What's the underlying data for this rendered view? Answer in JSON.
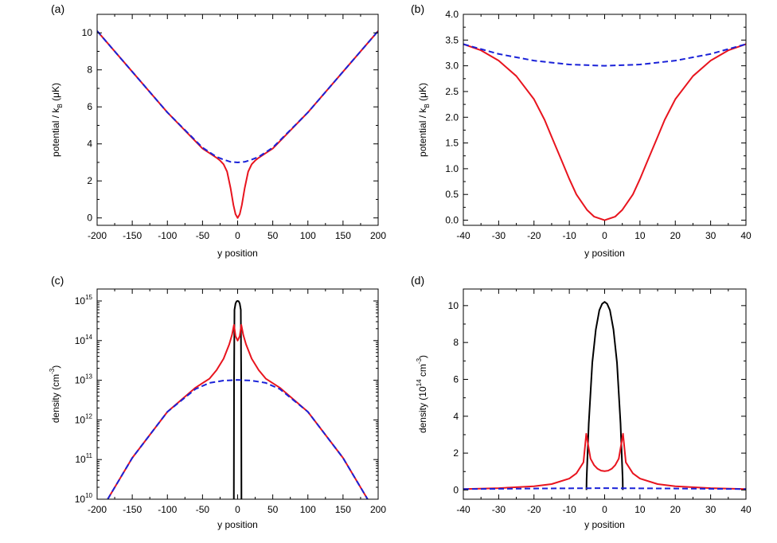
{
  "chart_data": [
    {
      "panel": "(a)",
      "type": "line",
      "xlabel": "y position",
      "ylabel": "potential / k_B (μK)",
      "ylabel_parts": {
        "pre": "potential / k",
        "sub": "B",
        "post": " (μK)"
      },
      "xlim": [
        -200,
        200
      ],
      "ylim": [
        -0.4,
        11
      ],
      "xticks": [
        -200,
        -150,
        -100,
        -50,
        0,
        50,
        100,
        150,
        200
      ],
      "xtick_labels": [
        "-200",
        "-150",
        "-100",
        "-50",
        "0",
        "50",
        "100",
        "150",
        "200"
      ],
      "yticks": [
        0,
        2,
        4,
        6,
        8,
        10
      ],
      "ytick_labels": [
        "0",
        "2",
        "4",
        "6",
        "8",
        "10"
      ],
      "yscale": "linear",
      "series": [
        {
          "color": "#e8141e",
          "style": "solid",
          "x": [
            -200,
            -150,
            -100,
            -50,
            -40,
            -30,
            -25,
            -20,
            -15,
            -10,
            -6,
            -3,
            0,
            3,
            6,
            10,
            15,
            20,
            25,
            30,
            40,
            50,
            100,
            150,
            200
          ],
          "y": [
            10.1,
            7.9,
            5.7,
            3.75,
            3.5,
            3.25,
            3.1,
            2.9,
            2.5,
            1.6,
            0.7,
            0.2,
            0.0,
            0.2,
            0.7,
            1.6,
            2.5,
            2.9,
            3.1,
            3.25,
            3.5,
            3.75,
            5.7,
            7.9,
            10.1
          ]
        },
        {
          "color": "#1a22d8",
          "style": "dashed",
          "x": [
            -200,
            -150,
            -100,
            -50,
            -40,
            -30,
            -20,
            -10,
            0,
            10,
            20,
            30,
            40,
            50,
            100,
            150,
            200
          ],
          "y": [
            10.1,
            7.9,
            5.7,
            3.8,
            3.55,
            3.3,
            3.15,
            3.03,
            3.0,
            3.03,
            3.15,
            3.3,
            3.55,
            3.8,
            5.7,
            7.9,
            10.1
          ]
        }
      ]
    },
    {
      "panel": "(b)",
      "type": "line",
      "xlabel": "y position",
      "ylabel": "potential / k_B (μK)",
      "ylabel_parts": {
        "pre": "potential / k",
        "sub": "B",
        "post": " (μK)"
      },
      "xlim": [
        -40,
        40
      ],
      "ylim": [
        -0.1,
        4.0
      ],
      "xticks": [
        -40,
        -30,
        -20,
        -10,
        0,
        10,
        20,
        30,
        40
      ],
      "xtick_labels": [
        "-40",
        "-30",
        "-20",
        "-10",
        "0",
        "10",
        "20",
        "30",
        "40"
      ],
      "yticks": [
        0.0,
        0.5,
        1.0,
        1.5,
        2.0,
        2.5,
        3.0,
        3.5,
        4.0
      ],
      "ytick_labels": [
        "0.0",
        "0.5",
        "1.0",
        "1.5",
        "2.0",
        "2.5",
        "3.0",
        "3.5",
        "4.0"
      ],
      "yscale": "linear",
      "series": [
        {
          "color": "#e8141e",
          "style": "solid",
          "x": [
            -40,
            -35,
            -30,
            -25,
            -20,
            -17,
            -15,
            -12,
            -10,
            -8,
            -5,
            -3,
            0,
            3,
            5,
            8,
            10,
            12,
            15,
            17,
            20,
            25,
            30,
            35,
            40
          ],
          "y": [
            3.42,
            3.3,
            3.1,
            2.8,
            2.35,
            1.95,
            1.62,
            1.13,
            0.8,
            0.5,
            0.2,
            0.07,
            0.0,
            0.07,
            0.2,
            0.5,
            0.8,
            1.13,
            1.62,
            1.95,
            2.35,
            2.8,
            3.1,
            3.3,
            3.42
          ]
        },
        {
          "color": "#1a22d8",
          "style": "dashed",
          "x": [
            -40,
            -30,
            -20,
            -10,
            0,
            10,
            20,
            30,
            40
          ],
          "y": [
            3.42,
            3.23,
            3.1,
            3.025,
            3.0,
            3.025,
            3.1,
            3.23,
            3.42
          ]
        }
      ]
    },
    {
      "panel": "(c)",
      "type": "line",
      "xlabel": "y position",
      "ylabel": "density (cm^-3)",
      "ylabel_parts": {
        "pre": "density (cm",
        "sup": "-3",
        "post": ")"
      },
      "xlim": [
        -200,
        200
      ],
      "ylim": [
        10000000000.0,
        2000000000000000.0
      ],
      "xticks": [
        -200,
        -150,
        -100,
        -50,
        0,
        50,
        100,
        150,
        200
      ],
      "xtick_labels": [
        "-200",
        "-150",
        "-100",
        "-50",
        "0",
        "50",
        "100",
        "150",
        "200"
      ],
      "yticks": [
        10000000000.0,
        100000000000.0,
        1000000000000.0,
        10000000000000.0,
        100000000000000.0,
        1000000000000000.0
      ],
      "ytick_labels": [
        {
          "base": "10",
          "exp": "10"
        },
        {
          "base": "10",
          "exp": "11"
        },
        {
          "base": "10",
          "exp": "12"
        },
        {
          "base": "10",
          "exp": "13"
        },
        {
          "base": "10",
          "exp": "14"
        },
        {
          "base": "10",
          "exp": "15"
        }
      ],
      "yscale": "log",
      "series": [
        {
          "color": "#000000",
          "style": "solid",
          "x": [
            -5.4,
            -5.1,
            -4.5,
            -3,
            -1.5,
            0,
            1.5,
            3,
            4.5,
            5.1,
            5.4
          ],
          "y": [
            10000000000.0,
            10000000000000.0,
            600000000000000.0,
            860000000000000.0,
            980000000000000.0,
            1000000000000000.0,
            980000000000000.0,
            860000000000000.0,
            600000000000000.0,
            10000000000000.0,
            10000000000.0
          ]
        },
        {
          "color": "#e8141e",
          "style": "solid",
          "x": [
            -185,
            -150,
            -100,
            -60,
            -40,
            -30,
            -20,
            -12,
            -8,
            -5.2,
            -3,
            0,
            3,
            5.2,
            8,
            12,
            20,
            30,
            40,
            60,
            100,
            150,
            185
          ],
          "y": [
            10000000000.0,
            110000000000.0,
            1600000000000.0,
            6500000000000.0,
            11000000000000.0,
            18000000000000.0,
            35000000000000.0,
            80000000000000.0,
            140000000000000.0,
            250000000000000.0,
            130000000000000.0,
            100000000000000.0,
            130000000000000.0,
            250000000000000.0,
            140000000000000.0,
            80000000000000.0,
            35000000000000.0,
            18000000000000.0,
            11000000000000.0,
            6500000000000.0,
            1600000000000.0,
            110000000000.0,
            10000000000.0
          ]
        },
        {
          "color": "#1a22d8",
          "style": "dashed",
          "x": [
            -185,
            -150,
            -100,
            -60,
            -40,
            -20,
            0,
            20,
            40,
            60,
            100,
            150,
            185
          ],
          "y": [
            10000000000.0,
            110000000000.0,
            1600000000000.0,
            6000000000000.0,
            8600000000000.0,
            9800000000000.0,
            10200000000000.0,
            9800000000000.0,
            8600000000000.0,
            6000000000000.0,
            1600000000000.0,
            110000000000.0,
            10000000000.0
          ]
        }
      ]
    },
    {
      "panel": "(d)",
      "type": "line",
      "xlabel": "y position",
      "ylabel": "density (10^14 cm^-3)",
      "ylabel_parts": {
        "pre": "density (10",
        "sup": "14",
        "mid": " cm",
        "sup2": "-3",
        "post": ")"
      },
      "xlim": [
        -40,
        40
      ],
      "ylim": [
        -0.5,
        10.9
      ],
      "xticks": [
        -40,
        -30,
        -20,
        -10,
        0,
        10,
        20,
        30,
        40
      ],
      "xtick_labels": [
        "-40",
        "-30",
        "-20",
        "-10",
        "0",
        "10",
        "20",
        "30",
        "40"
      ],
      "yticks": [
        0,
        2,
        4,
        6,
        8,
        10
      ],
      "ytick_labels": [
        "0",
        "2",
        "4",
        "6",
        "8",
        "10"
      ],
      "yscale": "linear",
      "series": [
        {
          "color": "#000000",
          "style": "solid",
          "x": [
            -5.15,
            -5.1,
            -4.5,
            -3.5,
            -2.5,
            -1.5,
            -0.7,
            0,
            0.7,
            1.5,
            2.5,
            3.5,
            4.5,
            5.1,
            5.15
          ],
          "y": [
            0.0,
            0.6,
            3.6,
            6.9,
            8.7,
            9.75,
            10.1,
            10.2,
            10.1,
            9.75,
            8.7,
            6.9,
            3.6,
            0.6,
            0.0
          ]
        },
        {
          "color": "#e8141e",
          "style": "solid",
          "x": [
            -40,
            -30,
            -20,
            -15,
            -10,
            -8,
            -6,
            -5.2,
            -4,
            -3,
            -2,
            -1,
            0,
            1,
            2,
            3,
            4,
            5.2,
            6,
            8,
            10,
            15,
            20,
            30,
            40
          ],
          "y": [
            0.05,
            0.1,
            0.2,
            0.32,
            0.62,
            0.9,
            1.5,
            3.05,
            1.7,
            1.35,
            1.15,
            1.05,
            1.02,
            1.05,
            1.15,
            1.35,
            1.7,
            3.05,
            1.5,
            0.9,
            0.62,
            0.32,
            0.2,
            0.1,
            0.05
          ]
        },
        {
          "color": "#1a22d8",
          "style": "dashed",
          "x": [
            -40,
            -20,
            0,
            20,
            40
          ],
          "y": [
            0.05,
            0.08,
            0.1,
            0.08,
            0.05
          ]
        }
      ]
    }
  ]
}
